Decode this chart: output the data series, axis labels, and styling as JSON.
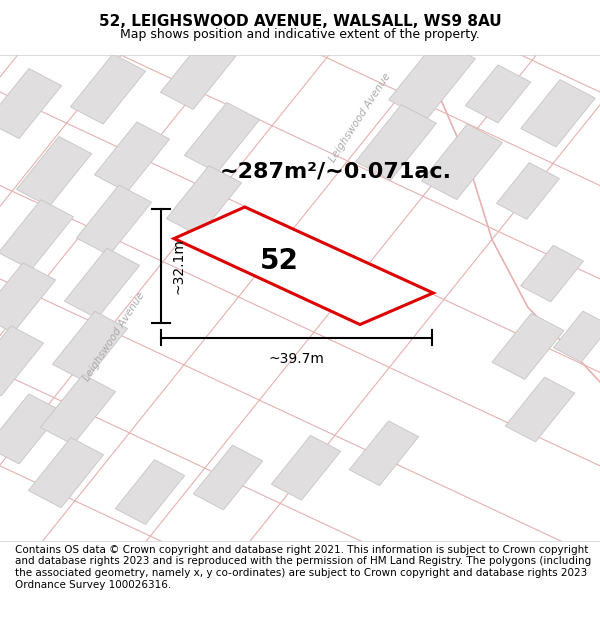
{
  "title": "52, LEIGHSWOOD AVENUE, WALSALL, WS9 8AU",
  "subtitle": "Map shows position and indicative extent of the property.",
  "footer": "Contains OS data © Crown copyright and database right 2021. This information is subject to Crown copyright and database rights 2023 and is reproduced with the permission of HM Land Registry. The polygons (including the associated geometry, namely x, y co-ordinates) are subject to Crown copyright and database rights 2023 Ordnance Survey 100026316.",
  "area_text": "~287m²/~0.071ac.",
  "number_label": "52",
  "dim_height": "~32.1m",
  "dim_width": "~39.7m",
  "map_bg": "#f0eeee",
  "road_label_left": "Leighswood Avenue",
  "road_label_right": "Leighswood Avenue",
  "highlight_color": "#dd0000",
  "building_fill": "#e0dede",
  "building_edge": "#c8c4c4",
  "road_line_color": "#e8b0b0",
  "road_outline_color": "#d0c8c8",
  "title_fontsize": 11,
  "subtitle_fontsize": 9,
  "area_fontsize": 16,
  "num_fontsize": 20,
  "dim_fontsize": 10,
  "footer_fontsize": 7.5
}
